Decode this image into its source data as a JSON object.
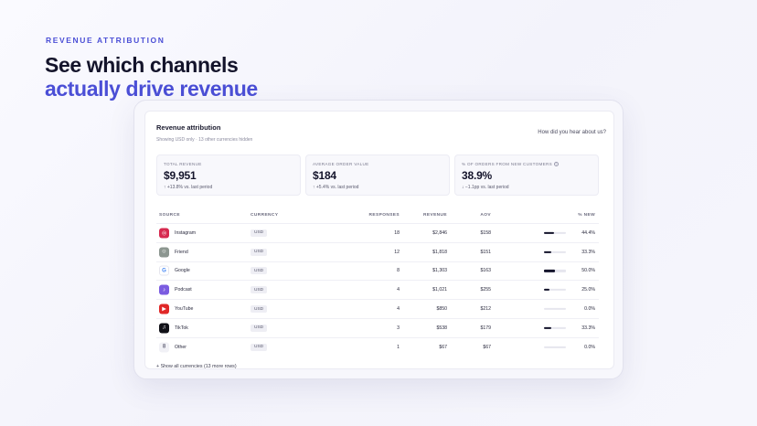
{
  "hero": {
    "eyebrow": "REVENUE ATTRIBUTION",
    "line1": "See which channels",
    "line2": "actually drive revenue"
  },
  "panel": {
    "title": "Revenue attribution",
    "subtitle": "Showing USD only · 13 other currencies hidden",
    "survey_link": "How did you hear about us?",
    "footer_link": "+ Show all currencies (13 more rows)"
  },
  "cards": [
    {
      "label": "TOTAL REVENUE",
      "value": "$9,951",
      "delta": "↑ +13.8% vs. last period"
    },
    {
      "label": "AVERAGE ORDER VALUE",
      "value": "$184",
      "delta": "↑ +5.4% vs. last period"
    },
    {
      "label": "% OF ORDERS FROM NEW CUSTOMERS",
      "value": "38.9%",
      "delta": "↓ −1.1pp vs. last period"
    }
  ],
  "table": {
    "headers": {
      "source": "SOURCE",
      "currency": "CURRENCY",
      "responses": "RESPONSES",
      "revenue": "REVENUE",
      "aov": "AOV",
      "pct_new": "% NEW"
    },
    "rows": [
      {
        "source": "Instagram",
        "icon": "instagram-icon",
        "icon_color": "#d6294f",
        "glyph": "◎",
        "currency": "USD",
        "responses": "18",
        "revenue": "$2,846",
        "aov": "$158",
        "pct_new": "44.4%",
        "pct_value": 44.4
      },
      {
        "source": "Friend",
        "icon": "friend-icon",
        "icon_color": "#8c9690",
        "glyph": "☺",
        "currency": "USD",
        "responses": "12",
        "revenue": "$1,818",
        "aov": "$151",
        "pct_new": "33.3%",
        "pct_value": 33.3
      },
      {
        "source": "Google",
        "icon": "google-icon",
        "icon_color": "#ffffff",
        "glyph": "G",
        "currency": "USD",
        "responses": "8",
        "revenue": "$1,303",
        "aov": "$163",
        "pct_new": "50.0%",
        "pct_value": 50.0
      },
      {
        "source": "Podcast",
        "icon": "podcast-icon",
        "icon_color": "#7b5ce0",
        "glyph": "♪",
        "currency": "USD",
        "responses": "4",
        "revenue": "$1,021",
        "aov": "$255",
        "pct_new": "25.0%",
        "pct_value": 25.0
      },
      {
        "source": "YouTube",
        "icon": "youtube-icon",
        "icon_color": "#e02828",
        "glyph": "▶",
        "currency": "USD",
        "responses": "4",
        "revenue": "$850",
        "aov": "$212",
        "pct_new": "0.0%",
        "pct_value": 0
      },
      {
        "source": "TikTok",
        "icon": "tiktok-icon",
        "icon_color": "#111118",
        "glyph": "♫",
        "currency": "USD",
        "responses": "3",
        "revenue": "$538",
        "aov": "$179",
        "pct_new": "33.3%",
        "pct_value": 33.3
      },
      {
        "source": "Other",
        "icon": "other-icon",
        "icon_color": "#f1f1f6",
        "glyph": "8",
        "currency": "USD",
        "responses": "1",
        "revenue": "$67",
        "aov": "$67",
        "pct_new": "0.0%",
        "pct_value": 0
      }
    ]
  }
}
